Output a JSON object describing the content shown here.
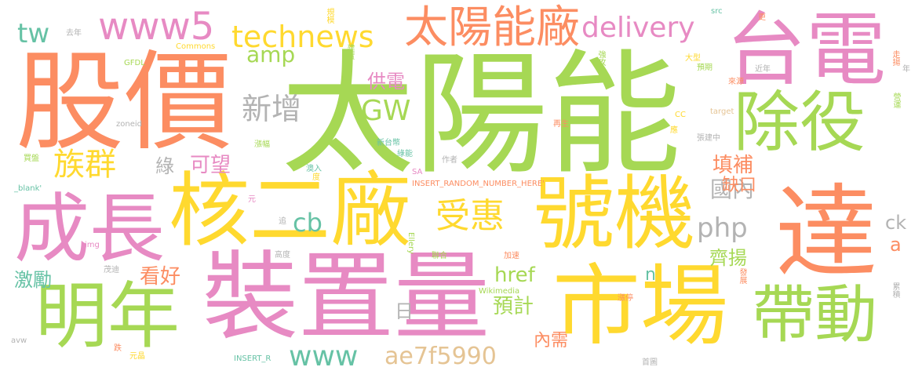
{
  "words": [
    {
      "text": "太陽能",
      "color": "#a6d854"
    },
    {
      "text": "股價",
      "color": "#fc8d62"
    },
    {
      "text": "裝置量",
      "color": "#e78ac3"
    },
    {
      "text": "市場",
      "color": "#ffd92f"
    },
    {
      "text": "台電",
      "color": "#e78ac3"
    },
    {
      "text": "達",
      "color": "#fc8d62"
    },
    {
      "text": "核二廠",
      "color": "#ffd92f"
    },
    {
      "text": "號機",
      "color": "#ffd92f"
    },
    {
      "text": "除役",
      "color": "#a6d854"
    },
    {
      "text": "帶動",
      "color": "#a6d854"
    },
    {
      "text": "明年",
      "color": "#a6d854"
    },
    {
      "text": "成長",
      "color": "#e78ac3"
    },
    {
      "text": "太陽能廠",
      "color": "#fc8d62"
    },
    {
      "text": "www5",
      "color": "#e78ac3"
    },
    {
      "text": "technews",
      "color": "#ffd92f"
    },
    {
      "text": "delivery",
      "color": "#e78ac3"
    },
    {
      "text": "受惠",
      "color": "#ffd92f"
    },
    {
      "text": "族群",
      "color": "#ffd92f"
    },
    {
      "text": "新增",
      "color": "#b3b3b3"
    },
    {
      "text": "GW",
      "color": "#a6d854"
    },
    {
      "text": "amp",
      "color": "#a6d854"
    },
    {
      "text": "tw",
      "color": "#66c2a5"
    },
    {
      "text": "cb",
      "color": "#66c2a5"
    },
    {
      "text": "php",
      "color": "#b3b3b3"
    },
    {
      "text": "國內",
      "color": "#b3b3b3"
    },
    {
      "text": "填補",
      "color": "#fc8d62"
    },
    {
      "text": "缺口",
      "color": "#fc8d62"
    },
    {
      "text": "ck",
      "color": "#b3b3b3"
    },
    {
      "text": "www",
      "color": "#66c2a5"
    },
    {
      "text": "ae7f5990",
      "color": "#e5c494"
    },
    {
      "text": "href",
      "color": "#a6d854"
    },
    {
      "text": "預計",
      "color": "#a6d854"
    },
    {
      "text": "內需",
      "color": "#fc8d62"
    },
    {
      "text": "齊揚",
      "color": "#a6d854"
    },
    {
      "text": "看好",
      "color": "#fc8d62"
    },
    {
      "text": "激勵",
      "color": "#66c2a5"
    },
    {
      "text": "可望",
      "color": "#e78ac3"
    },
    {
      "text": "綠",
      "color": "#b3b3b3"
    },
    {
      "text": "供電",
      "color": "#e78ac3"
    },
    {
      "text": "日",
      "color": "#b3b3b3"
    },
    {
      "text": "a",
      "color": "#fc8d62"
    },
    {
      "text": "n",
      "color": "#66c2a5"
    },
    {
      "text": "去年",
      "color": "#b3b3b3"
    },
    {
      "text": "Commons",
      "color": "#ffd92f"
    },
    {
      "text": "規模",
      "color": "#ffd92f"
    },
    {
      "text": "src",
      "color": "#66c2a5"
    },
    {
      "text": "更",
      "color": "#fc8d62"
    },
    {
      "text": "建置",
      "color": "#a6d854"
    },
    {
      "text": "強攻",
      "color": "#a6d854"
    },
    {
      "text": "大型",
      "color": "#ffd92f"
    },
    {
      "text": "走揚",
      "color": "#fc8d62"
    },
    {
      "text": "年",
      "color": "#b3b3b3"
    },
    {
      "text": "GFDL",
      "color": "#a6d854"
    },
    {
      "text": "預期",
      "color": "#a6d854"
    },
    {
      "text": "近年",
      "color": "#b3b3b3"
    },
    {
      "text": "來源",
      "color": "#fc8d62"
    },
    {
      "text": "營運",
      "color": "#a6d854"
    },
    {
      "text": "CC",
      "color": "#ffd92f"
    },
    {
      "text": "target",
      "color": "#e5c494"
    },
    {
      "text": "zoneid",
      "color": "#b3b3b3"
    },
    {
      "text": "再生",
      "color": "#fc8d62"
    },
    {
      "text": "新台幣",
      "color": "#66c2a5"
    },
    {
      "text": "綠能",
      "color": "#66c2a5"
    },
    {
      "text": "漲幅",
      "color": "#a6d854"
    },
    {
      "text": "應",
      "color": "#ffd92f"
    },
    {
      "text": "張建中",
      "color": "#b3b3b3"
    },
    {
      "text": "買盤",
      "color": "#a6d854"
    },
    {
      "text": "SA",
      "color": "#e78ac3"
    },
    {
      "text": "作者",
      "color": "#b3b3b3"
    },
    {
      "text": "澳入",
      "color": "#66c2a5"
    },
    {
      "text": "度",
      "color": "#ffd92f"
    },
    {
      "text": "INSERT_RANDOM_NUMBER_HERE'",
      "color": "#fc8d62"
    },
    {
      "text": "_blank'",
      "color": "#66c2a5"
    },
    {
      "text": "元",
      "color": "#e78ac3"
    },
    {
      "text": "追",
      "color": "#b3b3b3"
    },
    {
      "text": "Ellery",
      "color": "#a6d854"
    },
    {
      "text": "img",
      "color": "#e78ac3"
    },
    {
      "text": "高度",
      "color": "#b3b3b3"
    },
    {
      "text": "聯合",
      "color": "#a6d854"
    },
    {
      "text": "加速",
      "color": "#fc8d62"
    },
    {
      "text": "茂迪",
      "color": "#b3b3b3"
    },
    {
      "text": "Wikimedia",
      "color": "#a6d854"
    },
    {
      "text": "漲停",
      "color": "#fc8d62"
    },
    {
      "text": "發展",
      "color": "#fc8d62"
    },
    {
      "text": "累積",
      "color": "#b3b3b3"
    },
    {
      "text": "avw",
      "color": "#b3b3b3"
    },
    {
      "text": "INSERT_R",
      "color": "#66c2a5"
    },
    {
      "text": "跌",
      "color": "#fc8d62"
    },
    {
      "text": "元晶",
      "color": "#ffd92f"
    },
    {
      "text": "首圖",
      "color": "#b3b3b3"
    }
  ]
}
